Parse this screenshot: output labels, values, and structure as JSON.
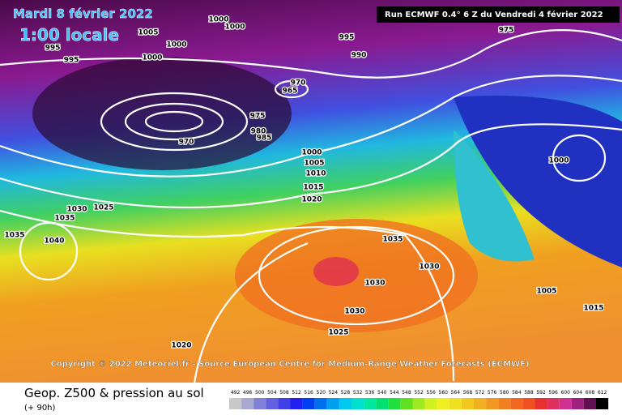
{
  "header": {
    "date": "Mardi 8 février 2022",
    "time": "1:00 locale",
    "run": "Run ECMWF 0.4° 6 Z du Vendredi 4 février 2022"
  },
  "copyright": "Copyright © 2022 Meteociel.fr - Source European Centre for Medium-Range Weather Forecasts (ECMWF)",
  "footer": {
    "title": "Geop. Z500 & pression au sol",
    "lead": "(+ 90h)"
  },
  "colorbar": {
    "ticks": [
      492,
      496,
      500,
      504,
      508,
      512,
      516,
      520,
      524,
      528,
      532,
      536,
      540,
      544,
      548,
      552,
      556,
      560,
      564,
      568,
      572,
      576,
      580,
      584,
      588,
      592,
      596,
      600,
      604,
      608,
      612
    ]
  },
  "isobars": [
    1005,
    1000,
    1000,
    1000,
    1000,
    995,
    995,
    995,
    990,
    975,
    970,
    965,
    975,
    980,
    985,
    970,
    1000,
    1005,
    1010,
    1015,
    1020,
    1025,
    1030,
    1035,
    1035,
    1040,
    1000,
    1035,
    1030,
    1030,
    1030,
    1025,
    1020,
    1005,
    1015
  ]
}
